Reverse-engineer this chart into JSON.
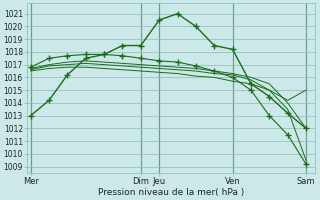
{
  "xlabel": "Pression niveau de la mer( hPa )",
  "background_color": "#cce8e8",
  "grid_color": "#88bbbb",
  "line_color": "#1a6b1a",
  "ylim": [
    1008.5,
    1021.8
  ],
  "yticks": [
    1009,
    1010,
    1011,
    1012,
    1013,
    1014,
    1015,
    1016,
    1017,
    1018,
    1019,
    1020,
    1021
  ],
  "xtick_labels": [
    "Mer",
    "Dim",
    "Jeu",
    "Ven",
    "Sam"
  ],
  "xtick_positions": [
    0,
    6,
    7,
    11,
    15
  ],
  "vline_positions": [
    0,
    6,
    7,
    11,
    15
  ],
  "xlim": [
    -0.2,
    15.5
  ],
  "line1_x": [
    0,
    1,
    2,
    3,
    4,
    5,
    6,
    7,
    8,
    9,
    10,
    11,
    12,
    13,
    14,
    15
  ],
  "line1_y": [
    1013.0,
    1014.2,
    1016.2,
    1017.5,
    1017.8,
    1018.5,
    1018.5,
    1020.5,
    1021.0,
    1020.0,
    1018.5,
    1018.2,
    1015.5,
    1014.5,
    1013.2,
    1012.0
  ],
  "line2_x": [
    0,
    1,
    2,
    3,
    4,
    5,
    6,
    7,
    8,
    9,
    10,
    11,
    12,
    13,
    14,
    15
  ],
  "line2_y": [
    1016.8,
    1017.5,
    1017.7,
    1017.8,
    1017.8,
    1017.7,
    1017.5,
    1017.3,
    1017.2,
    1016.9,
    1016.5,
    1016.0,
    1015.0,
    1013.0,
    1011.5,
    1009.2
  ],
  "line3_x": [
    0,
    1,
    2,
    3,
    4,
    5,
    6,
    7,
    8,
    9,
    10,
    11,
    12,
    13,
    14,
    15
  ],
  "line3_y": [
    1016.7,
    1017.0,
    1017.2,
    1017.3,
    1017.2,
    1017.1,
    1017.0,
    1016.9,
    1016.8,
    1016.7,
    1016.5,
    1016.3,
    1016.0,
    1015.5,
    1014.0,
    1012.0
  ],
  "line4_x": [
    0,
    1,
    2,
    3,
    4,
    5,
    6,
    7,
    8,
    9,
    10,
    11,
    12,
    13,
    14,
    15
  ],
  "line4_y": [
    1016.6,
    1016.9,
    1017.0,
    1017.1,
    1017.0,
    1016.9,
    1016.8,
    1016.7,
    1016.6,
    1016.5,
    1016.3,
    1016.2,
    1015.8,
    1015.0,
    1013.5,
    1009.5
  ],
  "line5_x": [
    0,
    1,
    2,
    3,
    4,
    5,
    6,
    7,
    8,
    9,
    10,
    11,
    12,
    13,
    14,
    15
  ],
  "line5_y": [
    1016.5,
    1016.7,
    1016.8,
    1016.8,
    1016.7,
    1016.6,
    1016.5,
    1016.4,
    1016.3,
    1016.1,
    1016.0,
    1015.7,
    1015.5,
    1015.0,
    1014.2,
    1015.0
  ]
}
